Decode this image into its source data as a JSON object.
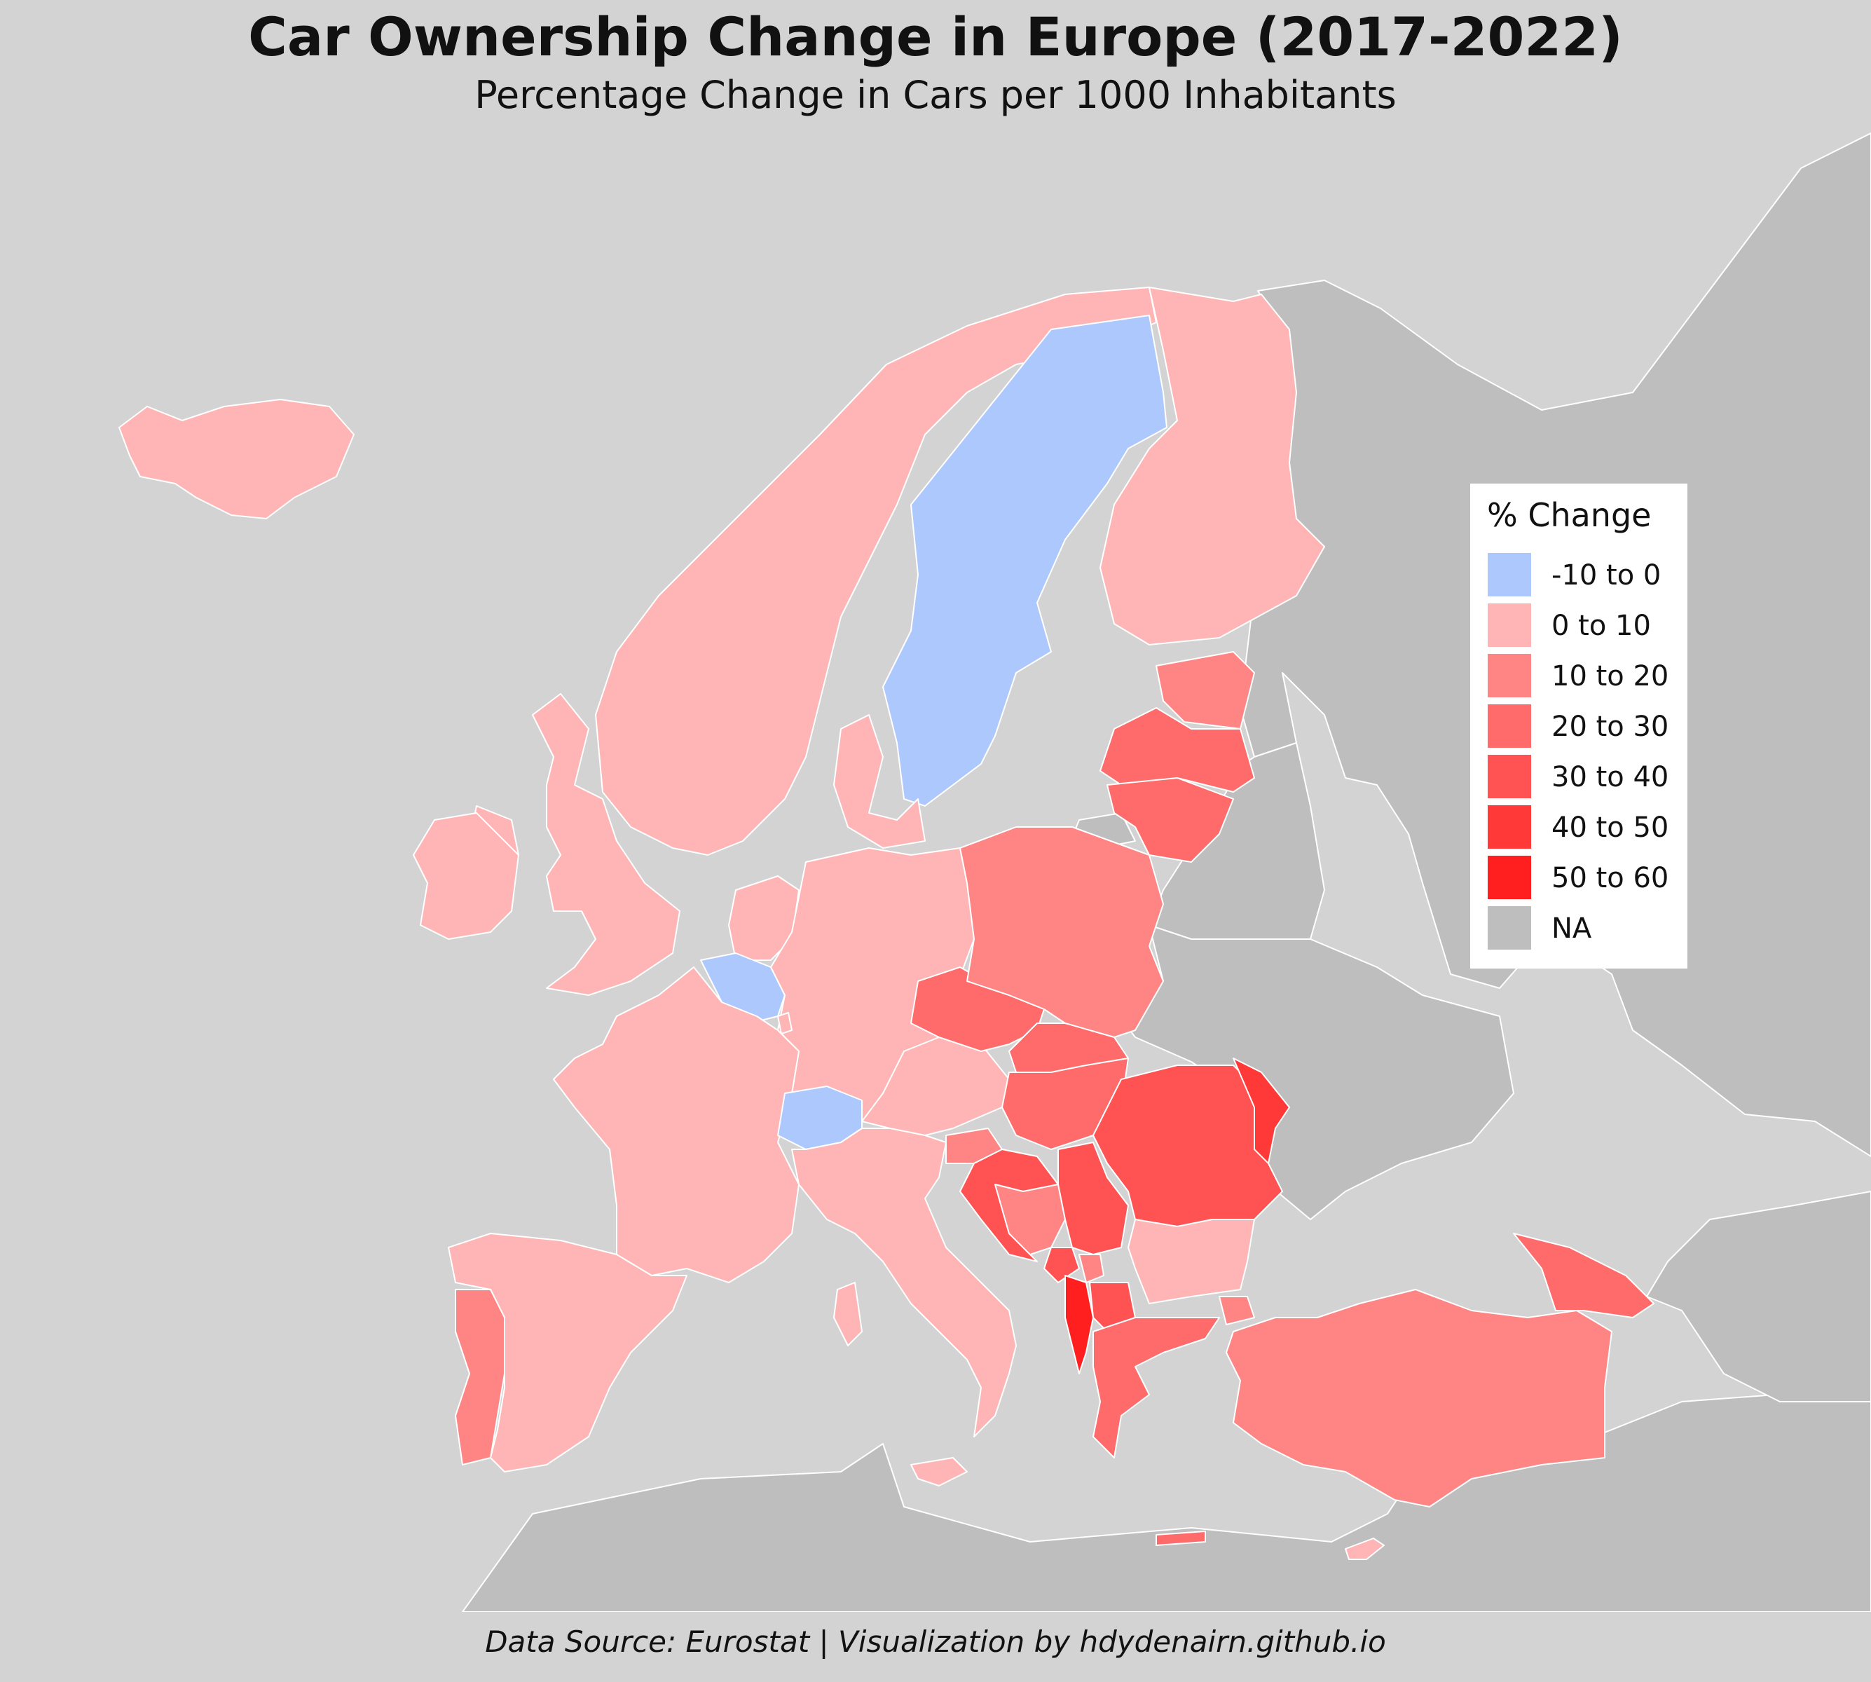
{
  "title": "Car Ownership Change in Europe (2017-2022)",
  "subtitle": "Percentage Change in Cars per 1000 Inhabitants",
  "caption": "Data Source: Eurostat | Visualization by hdydenairn.github.io",
  "legend": {
    "title": "% Change",
    "items": [
      {
        "label": "-10 to 0",
        "color": "#adc8fd"
      },
      {
        "label": "0 to 10",
        "color": "#ffb5b5"
      },
      {
        "label": "10 to 20",
        "color": "#ff8484"
      },
      {
        "label": "20 to 30",
        "color": "#ff6a6a"
      },
      {
        "label": "30 to 40",
        "color": "#ff5252"
      },
      {
        "label": "40 to 50",
        "color": "#ff3838"
      },
      {
        "label": "50 to 60",
        "color": "#ff1f1f"
      },
      {
        "label": "NA",
        "color": "#bebebe"
      }
    ]
  },
  "colors": {
    "background": "#d3d3d3",
    "na_land": "#bebebe",
    "border": "#ffffff"
  },
  "chart_data": {
    "type": "choropleth",
    "regions": [
      {
        "name": "Iceland",
        "bin": "0 to 10"
      },
      {
        "name": "Norway",
        "bin": "0 to 10"
      },
      {
        "name": "Sweden",
        "bin": "-10 to 0"
      },
      {
        "name": "Finland",
        "bin": "0 to 10"
      },
      {
        "name": "Estonia",
        "bin": "10 to 20"
      },
      {
        "name": "Latvia",
        "bin": "20 to 30"
      },
      {
        "name": "Lithuania",
        "bin": "20 to 30"
      },
      {
        "name": "Denmark",
        "bin": "0 to 10"
      },
      {
        "name": "United Kingdom",
        "bin": "0 to 10"
      },
      {
        "name": "Ireland",
        "bin": "0 to 10"
      },
      {
        "name": "Netherlands",
        "bin": "0 to 10"
      },
      {
        "name": "Belgium",
        "bin": "-10 to 0"
      },
      {
        "name": "Luxembourg",
        "bin": "0 to 10"
      },
      {
        "name": "France",
        "bin": "0 to 10"
      },
      {
        "name": "Spain",
        "bin": "0 to 10"
      },
      {
        "name": "Portugal",
        "bin": "10 to 20"
      },
      {
        "name": "Germany",
        "bin": "0 to 10"
      },
      {
        "name": "Switzerland",
        "bin": "-10 to 0"
      },
      {
        "name": "Austria",
        "bin": "0 to 10"
      },
      {
        "name": "Italy",
        "bin": "0 to 10"
      },
      {
        "name": "Poland",
        "bin": "10 to 20"
      },
      {
        "name": "Czechia",
        "bin": "20 to 30"
      },
      {
        "name": "Slovakia",
        "bin": "20 to 30"
      },
      {
        "name": "Hungary",
        "bin": "20 to 30"
      },
      {
        "name": "Slovenia",
        "bin": "10 to 20"
      },
      {
        "name": "Croatia",
        "bin": "30 to 40"
      },
      {
        "name": "Bosnia and Herzegovina",
        "bin": "10 to 20"
      },
      {
        "name": "Serbia",
        "bin": "30 to 40"
      },
      {
        "name": "Montenegro",
        "bin": "30 to 40"
      },
      {
        "name": "Kosovo",
        "bin": "10 to 20"
      },
      {
        "name": "Albania",
        "bin": "50 to 60"
      },
      {
        "name": "North Macedonia",
        "bin": "30 to 40"
      },
      {
        "name": "Romania",
        "bin": "30 to 40"
      },
      {
        "name": "Moldova",
        "bin": "40 to 50"
      },
      {
        "name": "Bulgaria",
        "bin": "0 to 10"
      },
      {
        "name": "Greece",
        "bin": "20 to 30"
      },
      {
        "name": "Turkey",
        "bin": "10 to 20"
      },
      {
        "name": "Georgia",
        "bin": "20 to 30"
      },
      {
        "name": "Cyprus",
        "bin": "0 to 10"
      },
      {
        "name": "Malta",
        "bin": "0 to 10"
      },
      {
        "name": "Russia",
        "bin": "NA"
      },
      {
        "name": "Belarus",
        "bin": "NA"
      },
      {
        "name": "Ukraine",
        "bin": "NA"
      },
      {
        "name": "Africa",
        "bin": "NA"
      },
      {
        "name": "Middle East",
        "bin": "NA"
      }
    ]
  }
}
